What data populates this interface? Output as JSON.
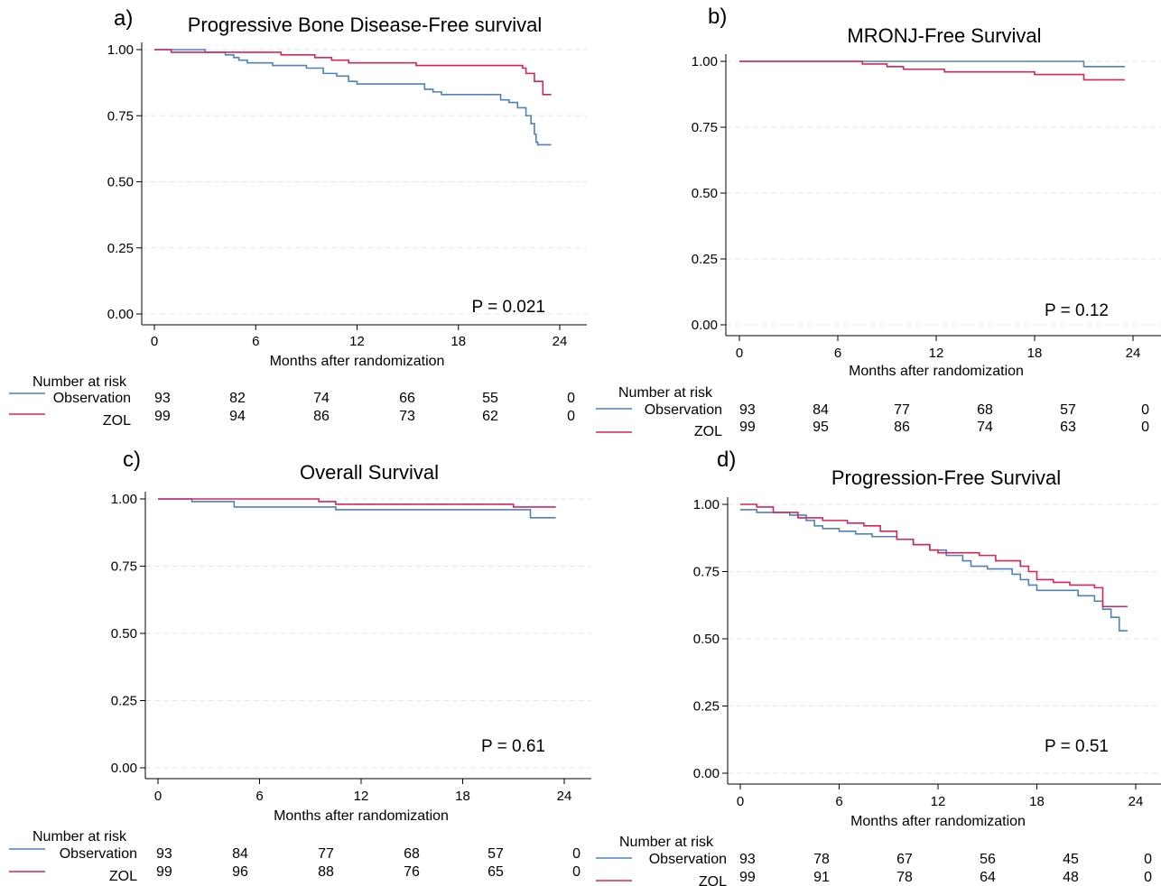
{
  "chart_data": [
    {
      "type": "line",
      "panel_label": "a)",
      "title": "Progressive Bone Disease-Free survival",
      "xlabel": "Months after randomization",
      "ylabel": "",
      "xlim": [
        0,
        24
      ],
      "ylim": [
        0,
        1
      ],
      "x_ticks": [
        "0",
        "6",
        "12",
        "18",
        "24"
      ],
      "y_ticks": [
        "0.00",
        "0.25",
        "0.50",
        "0.75",
        "1.00"
      ],
      "grid": true,
      "annotation": "P = 0.021",
      "series": [
        {
          "name": "Observation",
          "color": "#4f81bd",
          "x": [
            0,
            3.0,
            4.2,
            4.7,
            5.0,
            5.5,
            7.0,
            9.0,
            10.0,
            10.8,
            11.5,
            12.0,
            16.0,
            16.5,
            17.0,
            20.5,
            21.0,
            21.5,
            22.0,
            22.3,
            22.5,
            22.6,
            22.7,
            23.5
          ],
          "y": [
            1.0,
            0.99,
            0.98,
            0.97,
            0.96,
            0.95,
            0.94,
            0.93,
            0.91,
            0.9,
            0.88,
            0.87,
            0.85,
            0.84,
            0.83,
            0.81,
            0.8,
            0.78,
            0.75,
            0.72,
            0.68,
            0.65,
            0.64,
            0.64
          ]
        },
        {
          "name": "ZOL",
          "color": "#d6245a",
          "x": [
            0,
            1.0,
            3.5,
            7.5,
            9.5,
            10.5,
            11.5,
            15.5,
            21.8,
            22.0,
            22.5,
            23.0,
            23.5
          ],
          "y": [
            1.0,
            0.99,
            0.99,
            0.98,
            0.97,
            0.96,
            0.95,
            0.94,
            0.93,
            0.91,
            0.88,
            0.83,
            0.83
          ]
        }
      ],
      "risk_table": {
        "header": "Number at risk",
        "rows": [
          {
            "label": "Observation",
            "values": [
              "93",
              "82",
              "74",
              "66",
              "55",
              "0"
            ]
          },
          {
            "label": "ZOL",
            "values": [
              "99",
              "94",
              "86",
              "73",
              "62",
              "0"
            ]
          }
        ]
      }
    },
    {
      "type": "line",
      "panel_label": "b)",
      "title": "MRONJ-Free Survival",
      "xlabel": "Months after randomization",
      "ylabel": "",
      "xlim": [
        0,
        24
      ],
      "ylim": [
        0,
        1
      ],
      "x_ticks": [
        "0",
        "6",
        "12",
        "18",
        "24"
      ],
      "y_ticks": [
        "0.00",
        "0.25",
        "0.50",
        "0.75",
        "1.00"
      ],
      "grid": true,
      "annotation": "P = 0.12",
      "series": [
        {
          "name": "Observation",
          "color": "#4f81bd",
          "x": [
            0,
            21.0,
            23.5
          ],
          "y": [
            1.0,
            0.98,
            0.98
          ]
        },
        {
          "name": "ZOL",
          "color": "#d6245a",
          "x": [
            0,
            7.5,
            9.0,
            10.0,
            12.5,
            18.0,
            21.0,
            23.5
          ],
          "y": [
            1.0,
            0.99,
            0.98,
            0.97,
            0.96,
            0.95,
            0.93,
            0.93
          ]
        }
      ],
      "risk_table": {
        "header": "Number at risk",
        "rows": [
          {
            "label": "Observation",
            "values": [
              "93",
              "84",
              "77",
              "68",
              "57",
              "0"
            ]
          },
          {
            "label": "ZOL",
            "values": [
              "99",
              "95",
              "86",
              "74",
              "63",
              "0"
            ]
          }
        ]
      }
    },
    {
      "type": "line",
      "panel_label": "c)",
      "title": "Overall Survival",
      "xlabel": "Months after randomization",
      "ylabel": "",
      "xlim": [
        0,
        24
      ],
      "ylim": [
        0,
        1
      ],
      "x_ticks": [
        "0",
        "6",
        "12",
        "18",
        "24"
      ],
      "y_ticks": [
        "0.00",
        "0.25",
        "0.50",
        "0.75",
        "1.00"
      ],
      "grid": true,
      "annotation": "P = 0.61",
      "series": [
        {
          "name": "Observation",
          "color": "#4f81bd",
          "x": [
            0,
            2.0,
            4.5,
            10.5,
            22.0,
            23.5
          ],
          "y": [
            1.0,
            0.99,
            0.97,
            0.96,
            0.93,
            0.93
          ]
        },
        {
          "name": "ZOL",
          "color": "#d6245a",
          "x": [
            0,
            9.5,
            10.5,
            21.0,
            23.5
          ],
          "y": [
            1.0,
            0.99,
            0.98,
            0.97,
            0.97
          ]
        }
      ],
      "risk_table": {
        "header": "Number at risk",
        "rows": [
          {
            "label": "Observation",
            "values": [
              "93",
              "84",
              "77",
              "68",
              "57",
              "0"
            ]
          },
          {
            "label": "ZOL",
            "values": [
              "99",
              "96",
              "88",
              "76",
              "65",
              "0"
            ]
          }
        ]
      }
    },
    {
      "type": "line",
      "panel_label": "d)",
      "title": "Progression-Free Survival",
      "xlabel": "Months after randomization",
      "ylabel": "",
      "xlim": [
        0,
        24
      ],
      "ylim": [
        0,
        1
      ],
      "x_ticks": [
        "0",
        "6",
        "12",
        "18",
        "24"
      ],
      "y_ticks": [
        "0.00",
        "0.25",
        "0.50",
        "0.75",
        "1.00"
      ],
      "grid": true,
      "annotation": "P = 0.51",
      "series": [
        {
          "name": "Observation",
          "color": "#4f81bd",
          "x": [
            0,
            1.0,
            3.0,
            4.0,
            4.5,
            5.0,
            6.0,
            7.0,
            8.0,
            9.5,
            10.5,
            11.5,
            12.5,
            13.5,
            14.0,
            15.0,
            16.5,
            17.0,
            17.5,
            18.0,
            20.5,
            21.5,
            22.0,
            22.5,
            23.0,
            23.5
          ],
          "y": [
            0.98,
            0.97,
            0.96,
            0.94,
            0.92,
            0.91,
            0.9,
            0.89,
            0.88,
            0.87,
            0.85,
            0.83,
            0.81,
            0.79,
            0.77,
            0.76,
            0.74,
            0.72,
            0.7,
            0.68,
            0.66,
            0.64,
            0.61,
            0.58,
            0.53,
            0.53
          ]
        },
        {
          "name": "ZOL",
          "color": "#d6245a",
          "x": [
            0,
            1.0,
            2.0,
            3.5,
            5.0,
            6.5,
            7.5,
            8.5,
            9.5,
            10.5,
            11.5,
            12.0,
            14.5,
            15.5,
            17.0,
            17.5,
            18.0,
            19.0,
            20.0,
            21.5,
            22.0,
            23.5
          ],
          "y": [
            1.0,
            0.99,
            0.97,
            0.95,
            0.94,
            0.93,
            0.92,
            0.9,
            0.87,
            0.85,
            0.83,
            0.82,
            0.81,
            0.79,
            0.77,
            0.75,
            0.72,
            0.71,
            0.7,
            0.69,
            0.62,
            0.62
          ]
        }
      ],
      "risk_table": {
        "header": "Number at risk",
        "rows": [
          {
            "label": "Observation",
            "values": [
              "93",
              "78",
              "67",
              "56",
              "45",
              "0"
            ]
          },
          {
            "label": "ZOL",
            "values": [
              "99",
              "91",
              "78",
              "64",
              "48",
              "0"
            ]
          }
        ]
      }
    }
  ]
}
